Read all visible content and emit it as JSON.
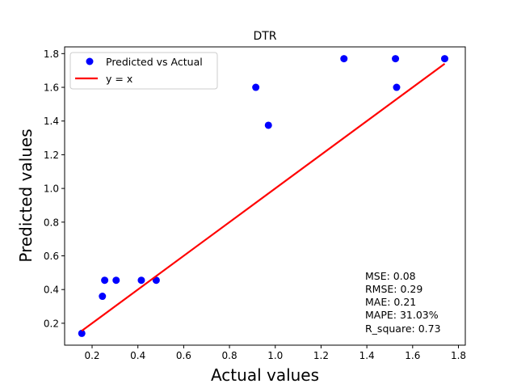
{
  "chart_data": {
    "type": "scatter",
    "title": "DTR",
    "xlabel": "Actual values",
    "ylabel": "Predicted values",
    "xlim": [
      0.08,
      1.83
    ],
    "ylim": [
      0.07,
      1.84
    ],
    "xticks": [
      0.2,
      0.4,
      0.6,
      0.8,
      1.0,
      1.2,
      1.4,
      1.6,
      1.8
    ],
    "xtick_labels": [
      "0.2",
      "0.4",
      "0.6",
      "0.8",
      "1.0",
      "1.2",
      "1.4",
      "1.6",
      "1.8"
    ],
    "yticks": [
      0.2,
      0.4,
      0.6,
      0.8,
      1.0,
      1.2,
      1.4,
      1.6,
      1.8
    ],
    "ytick_labels": [
      "0.2",
      "0.4",
      "0.6",
      "0.8",
      "1.0",
      "1.2",
      "1.4",
      "1.6",
      "1.8"
    ],
    "grid": false,
    "legend_placement": "top-left",
    "series": [
      {
        "name": "Predicted vs Actual",
        "kind": "scatter",
        "color": "#0000ff",
        "points": [
          {
            "x": 0.155,
            "y": 0.14
          },
          {
            "x": 0.245,
            "y": 0.36
          },
          {
            "x": 0.255,
            "y": 0.455
          },
          {
            "x": 0.305,
            "y": 0.455
          },
          {
            "x": 0.415,
            "y": 0.455
          },
          {
            "x": 0.48,
            "y": 0.455
          },
          {
            "x": 0.915,
            "y": 1.6
          },
          {
            "x": 0.97,
            "y": 1.375
          },
          {
            "x": 1.3,
            "y": 1.77
          },
          {
            "x": 1.525,
            "y": 1.77
          },
          {
            "x": 1.53,
            "y": 1.6
          },
          {
            "x": 1.74,
            "y": 1.77
          }
        ]
      },
      {
        "name": "y = x",
        "kind": "line",
        "color": "#ff0000",
        "points": [
          {
            "x": 0.155,
            "y": 0.155
          },
          {
            "x": 1.74,
            "y": 1.74
          }
        ]
      }
    ],
    "annotations": [
      "MSE: 0.08",
      "RMSE: 0.29",
      "MAE: 0.21",
      "MAPE: 31.03%",
      "R_square: 0.73"
    ]
  }
}
